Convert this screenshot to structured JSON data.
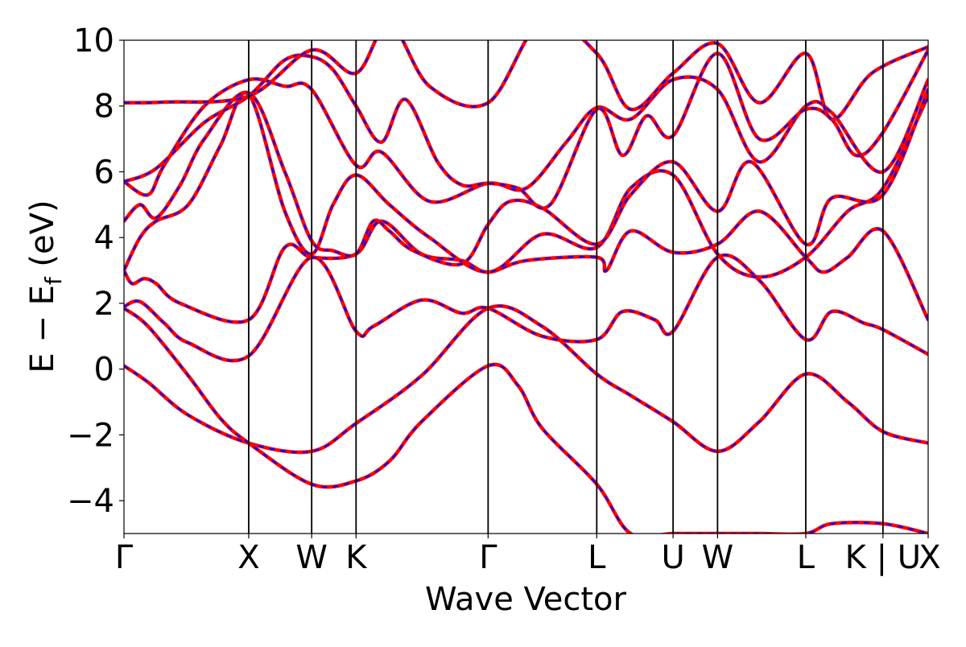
{
  "chart_data": {
    "type": "line",
    "title": "",
    "xlabel": "Wave Vector",
    "ylabel": {
      "prefix": "E − E",
      "subscript": "f",
      "suffix": " (eV)"
    },
    "ylim": [
      -5,
      10
    ],
    "yticks": [
      -4,
      -2,
      0,
      2,
      4,
      6,
      8,
      10
    ],
    "ytick_labels": [
      "−4",
      "−2",
      "0",
      "2",
      "4",
      "6",
      "8",
      "10"
    ],
    "xlim": [
      0,
      1
    ],
    "kpoints": [
      {
        "label": "Γ",
        "x": 0.0
      },
      {
        "label": "X",
        "x": 0.1551
      },
      {
        "label": "W",
        "x": 0.2334
      },
      {
        "label": "K",
        "x": 0.2886
      },
      {
        "label": "Γ",
        "x": 0.4528
      },
      {
        "label": "L",
        "x": 0.5879
      },
      {
        "label": "U",
        "x": 0.6828
      },
      {
        "label": "W",
        "x": 0.7381
      },
      {
        "label": "L",
        "x": 0.8478
      },
      {
        "label": "K | U",
        "x": 0.9438
      },
      {
        "label": "X",
        "x": 1.0
      }
    ],
    "series_styles": [
      {
        "color": "#ff0000",
        "dash": "solid"
      },
      {
        "color": "#0000ff",
        "dash": "dashed"
      }
    ],
    "bands": [
      {
        "x": [
          0,
          0.03,
          0.08,
          0.1551,
          0.2334,
          0.2886,
          0.37,
          0.4528,
          0.52,
          0.5879,
          0.63,
          0.6828,
          0.7381,
          0.79,
          0.8478,
          0.9,
          0.9438,
          1.0
        ],
        "y": [
          0.1,
          -0.4,
          -1.4,
          -2.25,
          -2.5,
          -1.65,
          -0.2,
          1.85,
          1.3,
          -0.15,
          -0.8,
          -1.6,
          -2.5,
          -1.6,
          -0.15,
          -1.0,
          -1.9,
          -2.25
        ]
      },
      {
        "x": [
          0,
          0.03,
          0.08,
          0.12,
          0.1551,
          0.2334,
          0.2886,
          0.33,
          0.37,
          0.4528,
          0.49,
          0.52,
          0.5879,
          0.63,
          0.6828,
          0.7381,
          0.79,
          0.8478,
          0.88,
          0.9438,
          1.0
        ],
        "y": [
          1.85,
          1.3,
          -0.2,
          -1.5,
          -2.25,
          -3.5,
          -3.4,
          -2.8,
          -1.6,
          0.1,
          -0.5,
          -1.8,
          -3.5,
          -5.0,
          -5.0,
          -5.0,
          -5.0,
          -5.0,
          -4.7,
          -4.7,
          -5.0
        ]
      },
      {
        "x": [
          0,
          0.02,
          0.05,
          0.08,
          0.1551,
          0.2334,
          0.2886,
          0.31,
          0.37,
          0.42,
          0.4528,
          0.52,
          0.5879,
          0.62,
          0.66,
          0.6828,
          0.7381,
          0.79,
          0.8478,
          0.88,
          0.92,
          0.9438,
          1.0
        ],
        "y": [
          1.9,
          2.05,
          1.4,
          0.8,
          0.4,
          3.4,
          1.15,
          1.3,
          2.1,
          1.7,
          1.85,
          1.0,
          0.9,
          1.75,
          1.5,
          1.15,
          3.4,
          2.7,
          0.9,
          1.75,
          1.4,
          1.2,
          0.45
        ]
      },
      {
        "x": [
          0,
          0.01,
          0.025,
          0.04,
          0.07,
          0.1551,
          0.2,
          0.2334,
          0.2886,
          0.32,
          0.37,
          0.42,
          0.4528,
          0.5,
          0.5879,
          0.6,
          0.63,
          0.6828,
          0.7381,
          0.79,
          0.8478,
          0.87,
          0.9,
          0.9438,
          1.0
        ],
        "y": [
          3.0,
          2.6,
          2.75,
          2.6,
          2.0,
          1.5,
          3.7,
          3.4,
          3.5,
          4.5,
          3.5,
          3.3,
          2.95,
          3.3,
          3.4,
          3.0,
          4.2,
          3.55,
          3.8,
          4.8,
          3.4,
          2.95,
          3.4,
          4.2,
          1.5
        ]
      },
      {
        "x": [
          0,
          0.02,
          0.04,
          0.08,
          0.12,
          0.1551,
          0.2,
          0.2334,
          0.26,
          0.2886,
          0.33,
          0.38,
          0.4528,
          0.52,
          0.5879,
          0.63,
          0.6828,
          0.7381,
          0.79,
          0.8478,
          0.9,
          0.9438,
          1.0
        ],
        "y": [
          3.0,
          4.0,
          4.5,
          5.0,
          6.8,
          8.35,
          4.8,
          3.5,
          5.0,
          5.9,
          5.0,
          4.0,
          2.95,
          4.1,
          3.7,
          5.5,
          5.9,
          3.5,
          2.8,
          3.4,
          4.8,
          5.5,
          8.3
        ]
      },
      {
        "x": [
          0,
          0.02,
          0.04,
          0.07,
          0.1,
          0.1551,
          0.2,
          0.2334,
          0.26,
          0.2886,
          0.31,
          0.33,
          0.36,
          0.42,
          0.4528,
          0.48,
          0.52,
          0.5879,
          0.63,
          0.6828,
          0.7381,
          0.78,
          0.8478,
          0.88,
          0.9438,
          1.0
        ],
        "y": [
          4.5,
          5.0,
          4.6,
          5.6,
          7.0,
          8.4,
          6.0,
          3.9,
          3.6,
          3.5,
          4.5,
          4.2,
          3.6,
          3.2,
          4.4,
          5.1,
          4.9,
          3.8,
          5.3,
          6.3,
          4.8,
          6.3,
          3.8,
          5.2,
          5.3,
          8.5
        ]
      },
      {
        "x": [
          0,
          0.03,
          0.05,
          0.1,
          0.1551,
          0.2,
          0.2334,
          0.2886,
          0.32,
          0.38,
          0.4528,
          0.5,
          0.55,
          0.5879,
          0.63,
          0.6828,
          0.7381,
          0.79,
          0.8478,
          0.88,
          0.9438,
          1.0
        ],
        "y": [
          5.7,
          5.3,
          6.2,
          8.0,
          8.8,
          8.6,
          8.5,
          6.2,
          6.6,
          5.1,
          5.65,
          5.5,
          6.9,
          7.95,
          7.6,
          8.8,
          8.5,
          6.3,
          8.0,
          7.8,
          6.0,
          8.8
        ]
      },
      {
        "x": [
          0,
          0.04,
          0.1,
          0.1551,
          0.2,
          0.2334,
          0.26,
          0.2886,
          0.32,
          0.35,
          0.39,
          0.42,
          0.4528,
          0.49,
          0.53,
          0.5879,
          0.62,
          0.65,
          0.6828,
          0.7381,
          0.79,
          0.8478,
          0.88,
          0.91,
          0.9438,
          1.0
        ],
        "y": [
          5.7,
          6.1,
          7.5,
          8.3,
          9.4,
          9.5,
          9.1,
          8.0,
          6.9,
          8.2,
          6.3,
          5.6,
          5.65,
          5.5,
          5.0,
          7.9,
          6.5,
          7.7,
          7.1,
          9.6,
          7.0,
          7.9,
          7.6,
          6.5,
          7.2,
          9.7
        ]
      },
      {
        "x": [
          0,
          0.05,
          0.1551,
          0.2334,
          0.2886,
          0.33,
          0.38,
          0.4528,
          0.52,
          0.5879,
          0.63,
          0.6828,
          0.7381,
          0.79,
          0.8478,
          0.88,
          0.93,
          1.0
        ],
        "y": [
          8.1,
          8.12,
          8.3,
          9.7,
          9.0,
          10.5,
          8.6,
          8.1,
          10.6,
          9.6,
          7.9,
          9.0,
          9.9,
          8.1,
          9.6,
          7.6,
          9.0,
          9.8
        ]
      }
    ]
  }
}
